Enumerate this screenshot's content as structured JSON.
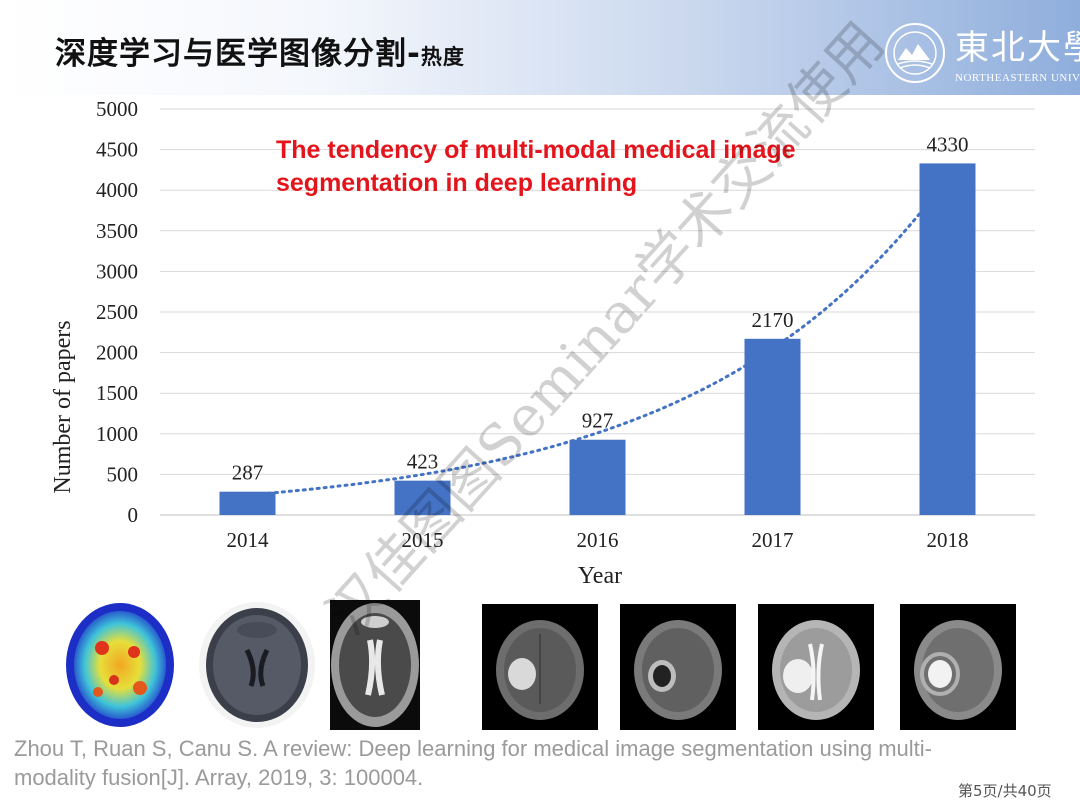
{
  "header": {
    "title_main": "深度学习与医学图像分割-",
    "title_sub": "热度",
    "logo_cn": "東北大學",
    "logo_en": "NORTHEASTERN UNIVERSITY"
  },
  "annotation": {
    "line1": "The tendency of multi-modal medical image",
    "line2": "segmentation in deep learning"
  },
  "chart_data": {
    "type": "bar",
    "categories": [
      "2014",
      "2015",
      "2016",
      "2017",
      "2018"
    ],
    "values": [
      287,
      423,
      927,
      2170,
      4330
    ],
    "data_labels": [
      "287",
      "423",
      "927",
      "2170",
      "4330"
    ],
    "xlabel": "Year",
    "ylabel": "Number of papers",
    "ylim": [
      0,
      5000
    ],
    "yticks": [
      "0",
      "500",
      "1000",
      "1500",
      "2000",
      "2500",
      "3000",
      "3500",
      "4000",
      "4500",
      "5000"
    ],
    "grid": true,
    "trendline": "dotted exponential",
    "bar_color": "#4472c4",
    "trend_color": "#4472c4"
  },
  "citation": {
    "line1": "Zhou T, Ruan S, Canu S. A review: Deep learning for medical image segmentation using multi-",
    "line2": "modality fusion[J]. Array, 2019, 3: 100004."
  },
  "footer": {
    "page": "第5页/共40页"
  },
  "watermark": "汉佳图图Seminar学术交流使用"
}
